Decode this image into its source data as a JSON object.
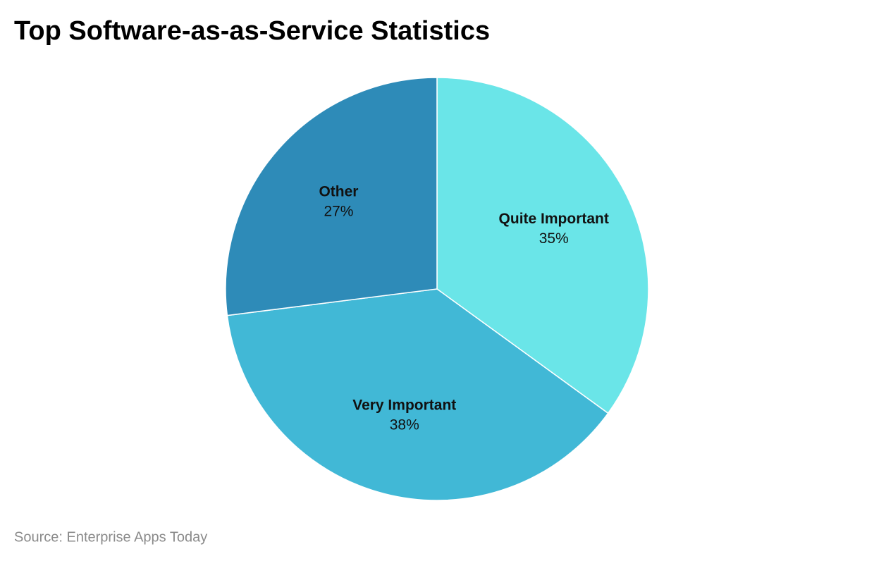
{
  "chart_data": {
    "type": "pie",
    "title": "Top Software-as-as-Service Statistics",
    "categories": [
      "Quite Important",
      "Very Important",
      "Other"
    ],
    "values": [
      35,
      38,
      27
    ],
    "value_labels": [
      "35%",
      "38%",
      "27%"
    ],
    "colors": [
      "#6ae5e8",
      "#41b8d6",
      "#2e8bb8"
    ],
    "source": "Source: Enterprise Apps Today"
  }
}
